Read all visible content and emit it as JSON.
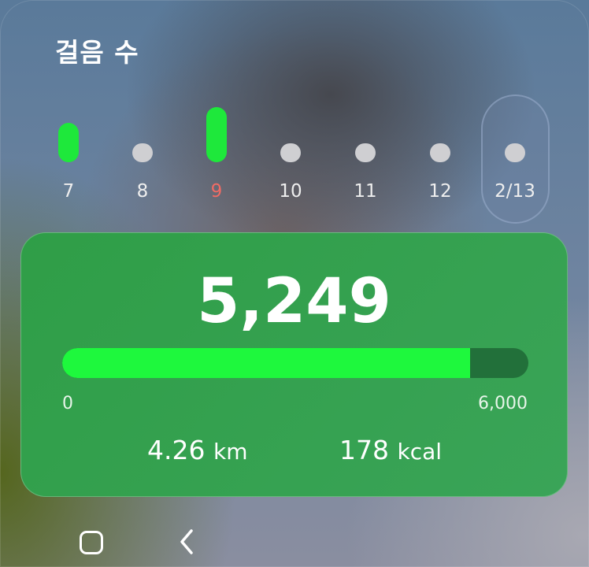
{
  "widget": {
    "title": "걸음 수"
  },
  "days": [
    {
      "label": "7",
      "level": 0.55,
      "active": true,
      "color": "#eeeeee"
    },
    {
      "label": "8",
      "level": 0,
      "active": false,
      "color": "#eeeeee"
    },
    {
      "label": "9",
      "level": 1,
      "active": true,
      "color": "#f06b64"
    },
    {
      "label": "10",
      "level": 0,
      "active": false,
      "color": "#eeeeee"
    },
    {
      "label": "11",
      "level": 0,
      "active": false,
      "color": "#eeeeee"
    },
    {
      "label": "12",
      "level": 0,
      "active": false,
      "color": "#eeeeee"
    },
    {
      "label": "2/13",
      "level": 0,
      "active": false,
      "selected": true,
      "color": "#eeeeee"
    }
  ],
  "summary": {
    "steps": "5,249",
    "goal_min": "0",
    "goal_max": "6,000",
    "progress": 0.875,
    "distance_value": "4.26",
    "distance_unit": "km",
    "calories_value": "178",
    "calories_unit": "kcal"
  },
  "colors": {
    "accent": "#1ef83d",
    "panel": "#34a150",
    "today_label": "#f06b64"
  },
  "nav": {
    "home_icon": "square-home-icon",
    "back_icon": "chevron-left-icon"
  }
}
